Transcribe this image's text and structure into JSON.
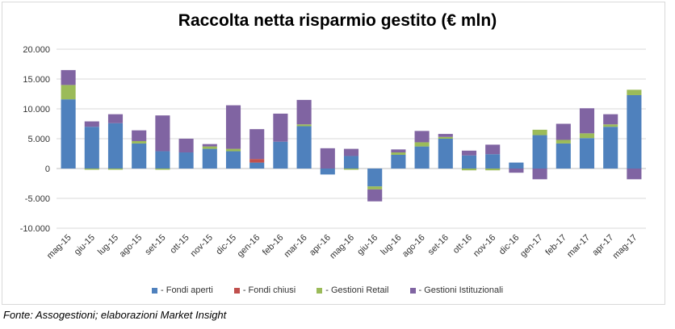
{
  "chart_data": {
    "type": "bar",
    "stacked": true,
    "title": "Raccolta netta risparmio gestito (€ mln)",
    "categories": [
      "mag-15",
      "giu-15",
      "lug-15",
      "ago-15",
      "set-15",
      "ott-15",
      "nov-15",
      "dic-15",
      "gen-16",
      "feb-16",
      "mar-16",
      "apr-16",
      "mag-16",
      "giu-16",
      "lug-16",
      "ago-16",
      "set-16",
      "ott-16",
      "nov-16",
      "dic-16",
      "gen-17",
      "feb-17",
      "mar-17",
      "apr-17",
      "mag-17"
    ],
    "ylim": [
      -10000,
      20000
    ],
    "yticks": [
      -10000,
      -5000,
      0,
      5000,
      10000,
      15000,
      20000
    ],
    "ytick_labels": [
      "-10.000",
      "-5.000",
      "0",
      "5.000",
      "10.000",
      "15.000",
      "20.000"
    ],
    "grid": true,
    "legend_position": "bottom",
    "series": [
      {
        "name": "Fondi aperti",
        "color": "#4f81bd",
        "values": [
          11600,
          7000,
          7600,
          4200,
          2900,
          2700,
          3300,
          2900,
          1000,
          4500,
          7100,
          -1000,
          2100,
          -3000,
          2300,
          3700,
          5000,
          2200,
          2400,
          1000,
          5600,
          4200,
          5100,
          7000,
          12300
        ]
      },
      {
        "name": "Fondi chiusi",
        "color": "#c0504d",
        "values": [
          0,
          0,
          0,
          0,
          0,
          0,
          0,
          0,
          600,
          0,
          0,
          0,
          0,
          0,
          0,
          0,
          0,
          0,
          0,
          0,
          0,
          0,
          0,
          0,
          0
        ]
      },
      {
        "name": "Gestioni Retail",
        "color": "#9bbb59",
        "values": [
          2400,
          -200,
          -200,
          400,
          -200,
          0,
          400,
          400,
          0,
          0,
          300,
          0,
          -200,
          -500,
          400,
          700,
          300,
          -300,
          -300,
          0,
          900,
          600,
          800,
          400,
          900
        ]
      },
      {
        "name": "Gestioni Istituzionali",
        "color": "#8064a2",
        "values": [
          2500,
          900,
          1500,
          1800,
          6000,
          2300,
          400,
          7300,
          5000,
          4700,
          4100,
          3400,
          1200,
          -2000,
          500,
          1900,
          500,
          800,
          1600,
          -700,
          -1800,
          2700,
          4200,
          1700,
          -1800
        ]
      }
    ]
  },
  "source_note": "Fonte: Assogestioni; elaborazioni Market Insight"
}
